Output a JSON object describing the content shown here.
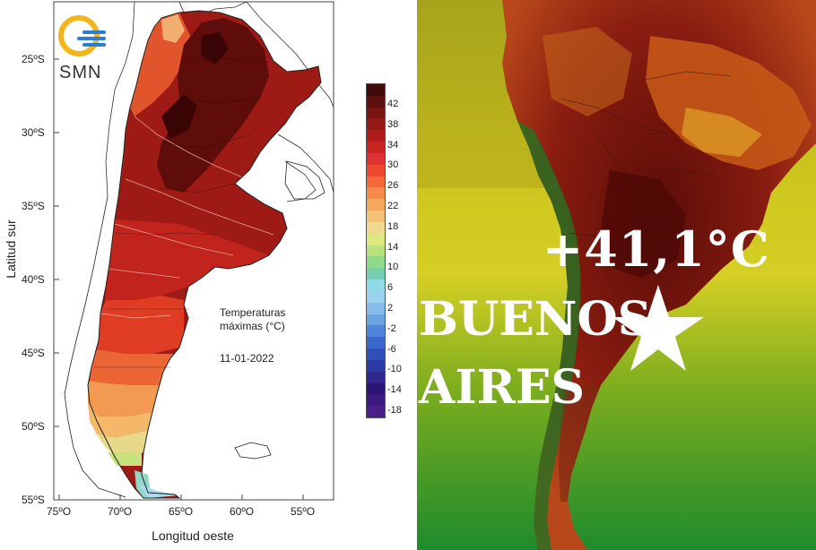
{
  "left_map": {
    "logo_text": "SMN",
    "title_line1": "Temperaturas",
    "title_line2": "máximas (°C)",
    "date": "11-01-2022",
    "y_axis_label": "Latitud sur",
    "x_axis_label": "Longitud oeste",
    "lat_ticks": [
      "25ºS",
      "30ºS",
      "35ºS",
      "40ºS",
      "45ºS",
      "50ºS",
      "55ºS"
    ],
    "lon_ticks": [
      "75ºO",
      "70ºO",
      "65ºO",
      "60ºO",
      "55ºO"
    ],
    "colorbar": {
      "labels": [
        "42",
        "38",
        "34",
        "30",
        "26",
        "22",
        "18",
        "14",
        "10",
        "6",
        "2",
        "-2",
        "-6",
        "-10",
        "-14",
        "-18"
      ],
      "colors": [
        "#3f0a0a",
        "#5c0f0f",
        "#7a1212",
        "#951818",
        "#b01c1c",
        "#c92424",
        "#de3232",
        "#ec4a2c",
        "#f3693a",
        "#f58b4b",
        "#f5a75d",
        "#f4c177",
        "#efd98a",
        "#dfe87f",
        "#b9e37a",
        "#8fd98a",
        "#74cfb1",
        "#8fdbe8",
        "#9bd2ee",
        "#86bcea",
        "#6aa2e2",
        "#4e85d8",
        "#3a69cb",
        "#2e50b8",
        "#2d3aa3",
        "#2f268e",
        "#2a1475",
        "#3a1a80",
        "#4a1f8a"
      ]
    }
  },
  "right_map": {
    "temperature": "+41,1°C",
    "city_line1": "BUENOS",
    "city_line2": "AIRES"
  }
}
